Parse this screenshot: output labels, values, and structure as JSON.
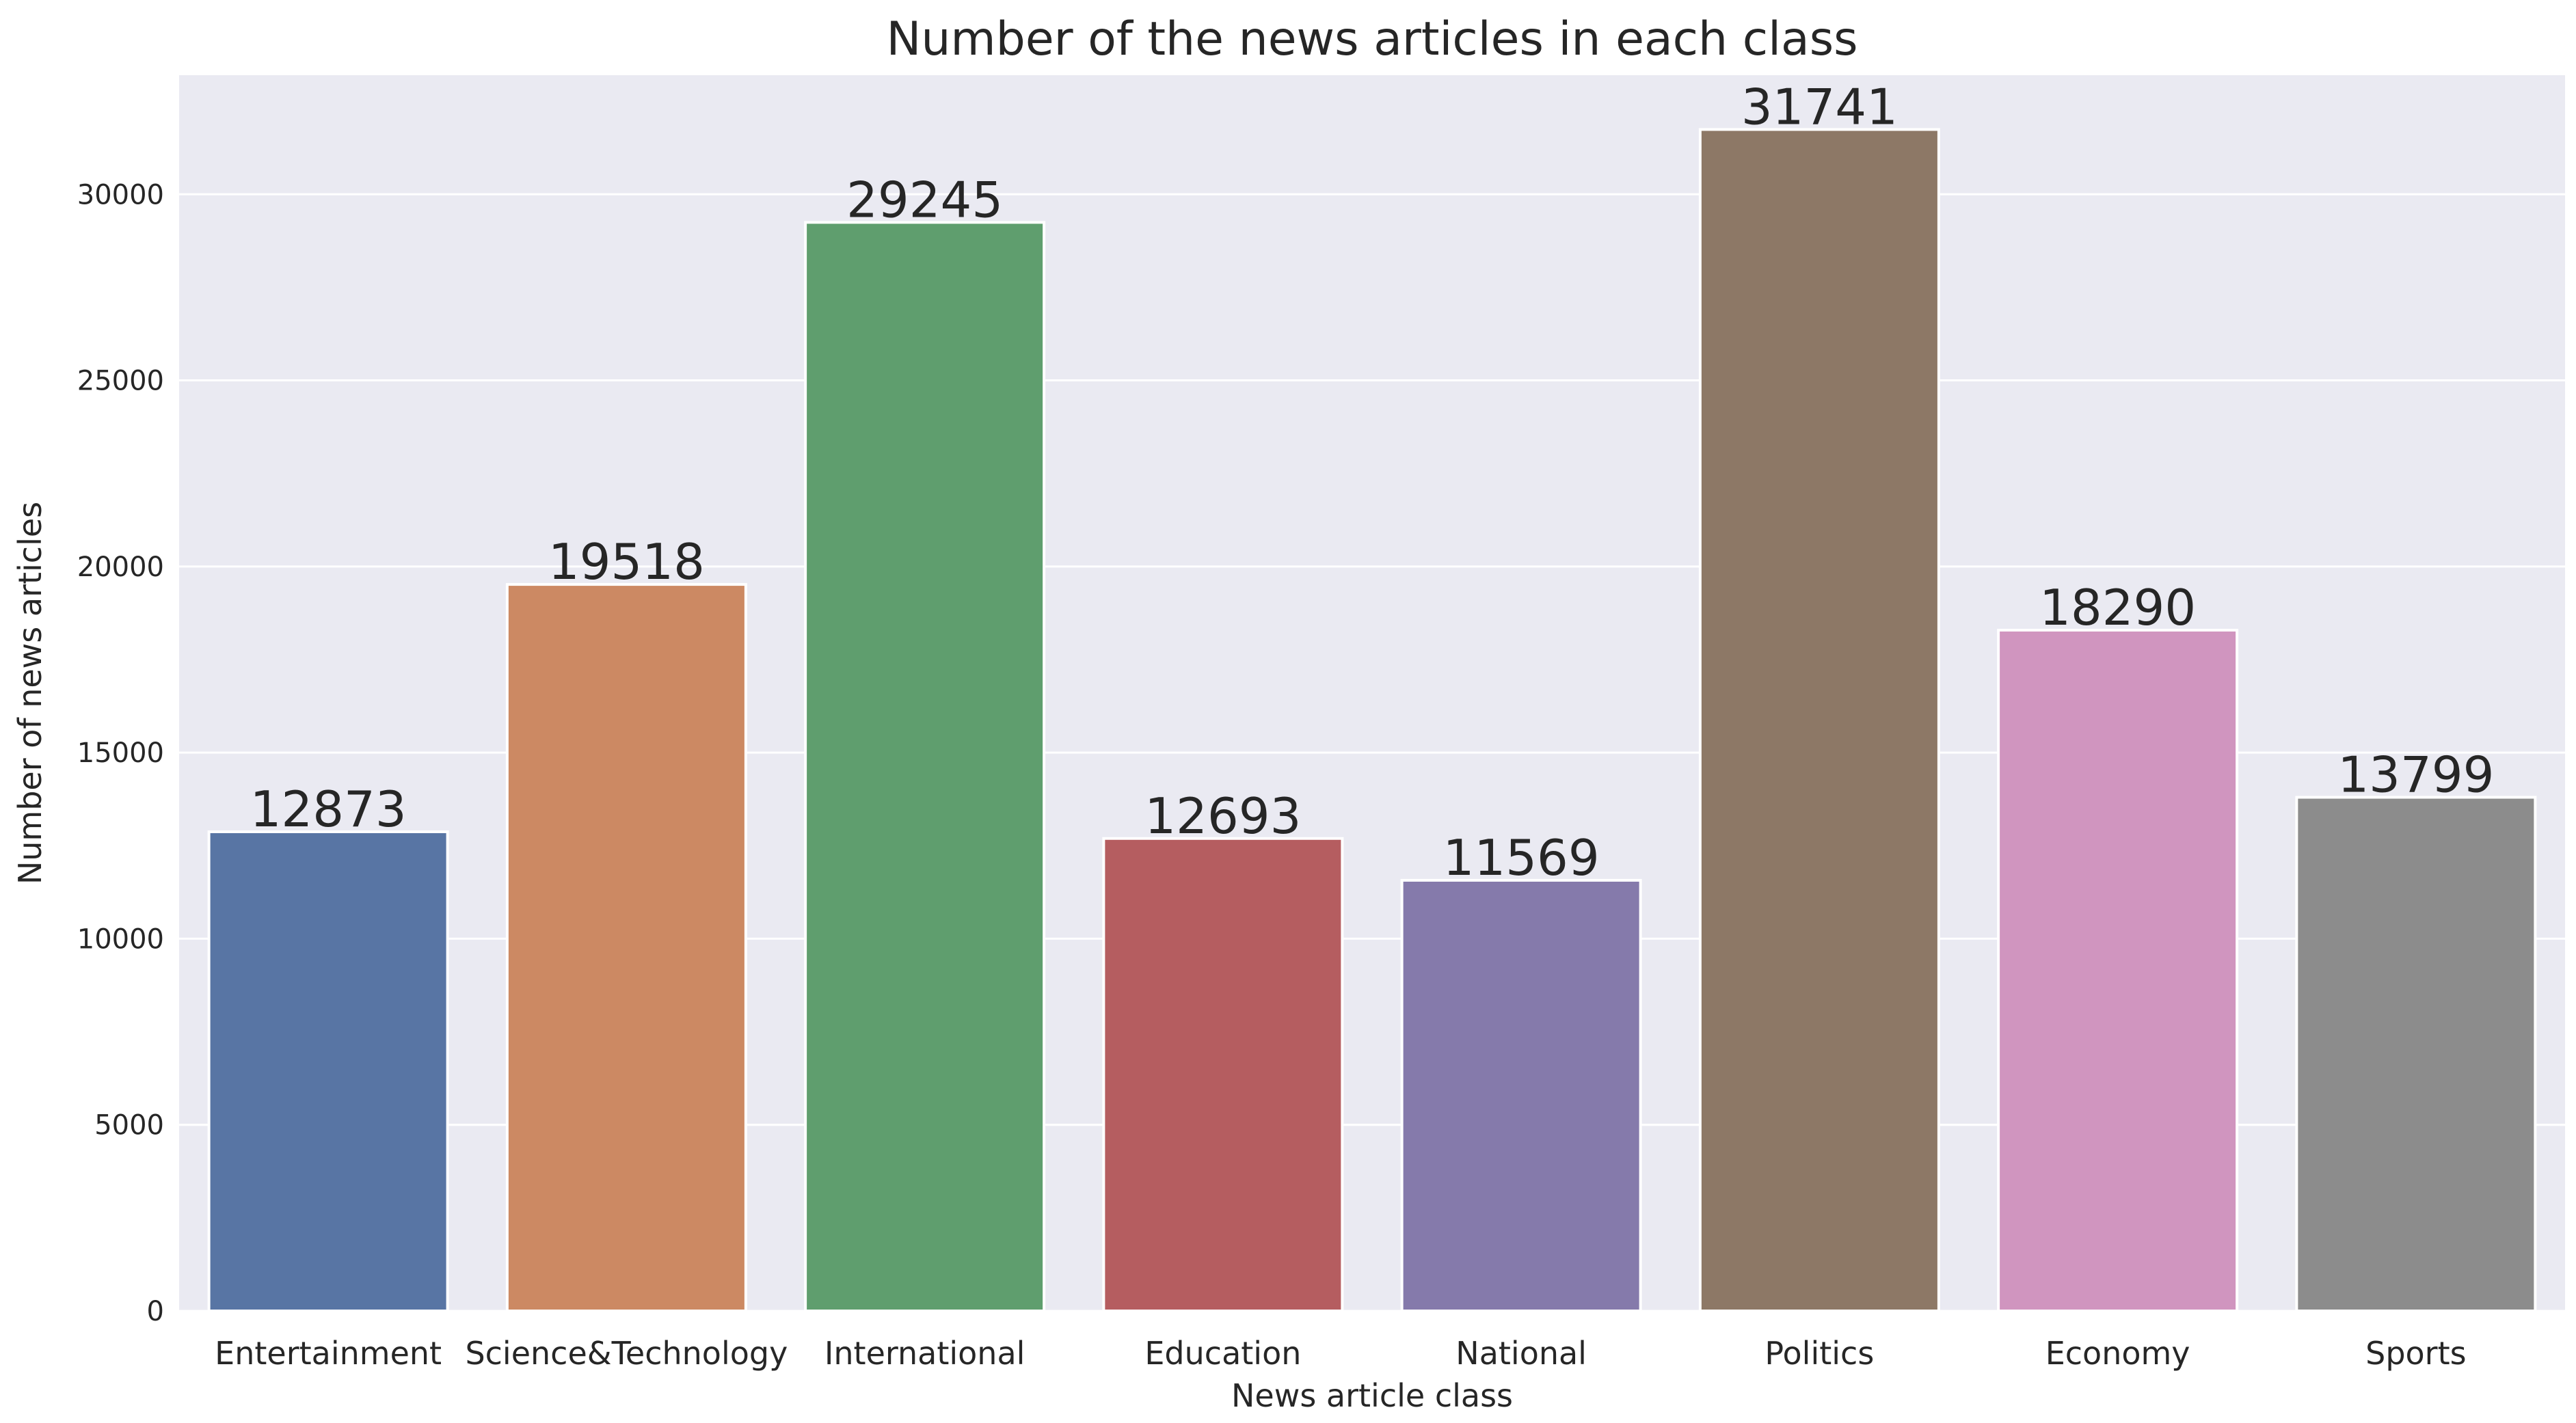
{
  "chart_data": {
    "type": "bar",
    "title": "Number of the news articles in each class",
    "xlabel": "News article class",
    "ylabel": "Number of news articles",
    "categories": [
      "Entertainment",
      "Science&Technology",
      "International",
      "Education",
      "National",
      "Politics",
      "Economy",
      "Sports"
    ],
    "values": [
      12873,
      19518,
      29245,
      12693,
      11569,
      31741,
      18290,
      13799
    ],
    "colors": [
      "#5875a4",
      "#cc8963",
      "#5f9e6e",
      "#b55d60",
      "#857aab",
      "#8d7866",
      "#d095bf",
      "#8c8c8c"
    ],
    "ylim": [
      0,
      33200
    ],
    "yticks": [
      0,
      5000,
      10000,
      15000,
      20000,
      25000,
      30000
    ],
    "grid": true,
    "legend": false,
    "background": "#eaeaf2"
  }
}
